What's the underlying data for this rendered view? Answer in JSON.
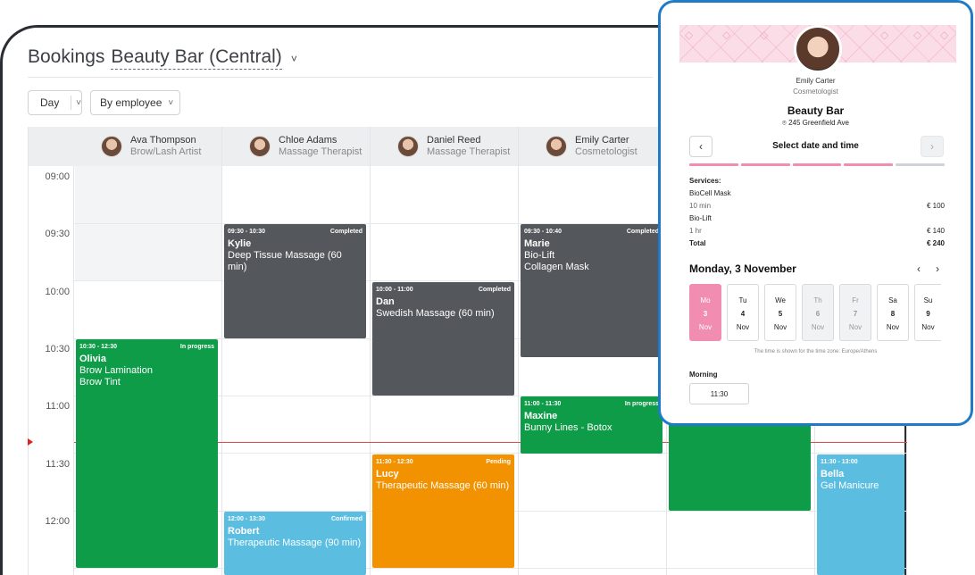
{
  "header": {
    "title": "Bookings",
    "location": "Beauty Bar (Central)",
    "location_chevron": "˅"
  },
  "toolbar": {
    "view_label": "Day",
    "view_arrow": "˅",
    "group_label": "By employee",
    "group_arrow": "˅"
  },
  "times": [
    "09:00",
    "09:30",
    "10:00",
    "10:30",
    "11:00",
    "11:30",
    "12:00"
  ],
  "employees": [
    {
      "name": "Ava Thompson",
      "role": "Brow/Lash Artist"
    },
    {
      "name": "Chloe Adams",
      "role": "Massage Therapist"
    },
    {
      "name": "Daniel Reed",
      "role": "Massage Therapist"
    },
    {
      "name": "Emily Carter",
      "role": "Cosmetologist"
    }
  ],
  "appointments": [
    {
      "time": "09:30 - 10:30",
      "status": "Completed",
      "name": "Kylie",
      "services": [
        "Deep Tissue Massage (60 min)"
      ]
    },
    {
      "time": "09:30 - 10:40",
      "status": "Completed",
      "name": "Marie",
      "services": [
        "Bio-Lift",
        "Collagen Mask"
      ]
    },
    {
      "time": "10:00 - 11:00",
      "status": "Completed",
      "name": "Dan",
      "services": [
        "Swedish Massage (60 min)"
      ]
    },
    {
      "time": "10:30 - 12:30",
      "status": "In progress",
      "name": "Olivia",
      "services": [
        "Brow Lamination",
        "Brow Tint"
      ]
    },
    {
      "time": "11:00 - 11:30",
      "status": "In progress",
      "name": "Maxine",
      "services": [
        "Bunny Lines - Botox"
      ]
    },
    {
      "time": "11:30 - 12:30",
      "status": "Pending",
      "name": "Lucy",
      "services": [
        "Therapeutic Massage (60 min)"
      ]
    },
    {
      "time": "11:30 - 13:00",
      "status": "",
      "name": "Bella",
      "services": [
        "Gel Manicure"
      ]
    },
    {
      "time": "12:00 - 13:30",
      "status": "Confirmed",
      "name": "Robert",
      "services": [
        "Therapeutic Massage (90 min)"
      ]
    }
  ],
  "colors": {
    "completed": "#54575b",
    "in_progress": "#0e9c48",
    "pending": "#f39200",
    "confirmed": "#5bbde0",
    "panel_border": "#1f7ac8",
    "accent_pink": "#f28db2",
    "now_line": "#e04a4a"
  },
  "booking_panel": {
    "staff_name": "Emily Carter",
    "staff_role": "Cosmetologist",
    "business": "Beauty Bar",
    "address": "245 Greenfield Ave",
    "step_title": "Select date and time",
    "prev_icon": "‹",
    "next_icon": "›",
    "progress_steps_done": 4,
    "progress_steps_total": 5,
    "services_label": "Services:",
    "service_1": "BioCell Mask",
    "service_1_duration": "10 min",
    "service_1_price": "€ 100",
    "service_2": "Bio-Lift",
    "service_2_duration": "1 hr",
    "service_2_price": "€ 140",
    "total_label": "Total",
    "total_value": "€ 240",
    "date_title": "Monday, 3 November",
    "date_prev": "‹",
    "date_next": "›",
    "days": [
      {
        "dow": "Mo",
        "num": "3",
        "mon": "Nov"
      },
      {
        "dow": "Tu",
        "num": "4",
        "mon": "Nov"
      },
      {
        "dow": "We",
        "num": "5",
        "mon": "Nov"
      },
      {
        "dow": "Th",
        "num": "6",
        "mon": "Nov"
      },
      {
        "dow": "Fr",
        "num": "7",
        "mon": "Nov"
      },
      {
        "dow": "Sa",
        "num": "8",
        "mon": "Nov"
      },
      {
        "dow": "Su",
        "num": "9",
        "mon": "Nov"
      }
    ],
    "timezone_note": "The time is shown for the time zone: Europe/Athens",
    "morning_label": "Morning",
    "slot": "11:30"
  }
}
